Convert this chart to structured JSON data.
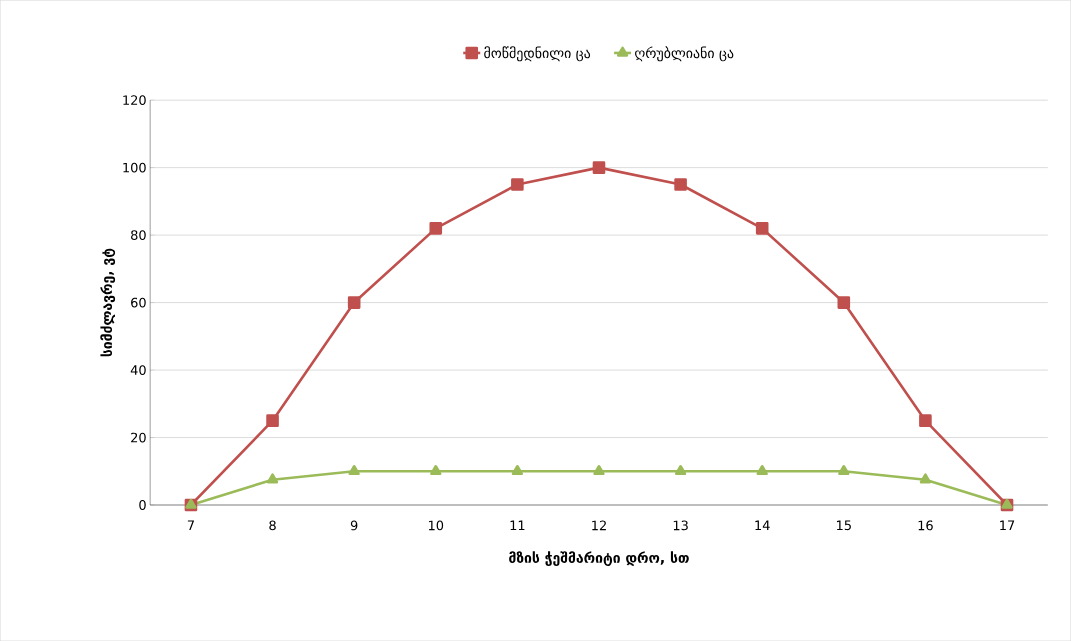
{
  "chart_data": {
    "type": "line",
    "xlabel": "მზის ჭეშმარიტი დრო, სთ",
    "ylabel": "სიმძლავრე, ვტ",
    "categories": [
      "7",
      "8",
      "9",
      "10",
      "11",
      "12",
      "13",
      "14",
      "15",
      "16",
      "17"
    ],
    "series": [
      {
        "name": "მოწმედნილი ცა",
        "color": "#c0504d",
        "marker": "square",
        "values": [
          0,
          25,
          60,
          82,
          95,
          100,
          95,
          82,
          60,
          25,
          0
        ]
      },
      {
        "name": "ღრუბლიანი ცა",
        "color": "#9bbb59",
        "marker": "triangle",
        "values": [
          0,
          7.5,
          10,
          10,
          10,
          10,
          10,
          10,
          10,
          7.5,
          0
        ]
      }
    ],
    "ylim": [
      0,
      120
    ],
    "yticks": [
      0,
      20,
      40,
      60,
      80,
      100,
      120
    ],
    "grid": "y",
    "legend": "top",
    "line_style": "solid"
  }
}
